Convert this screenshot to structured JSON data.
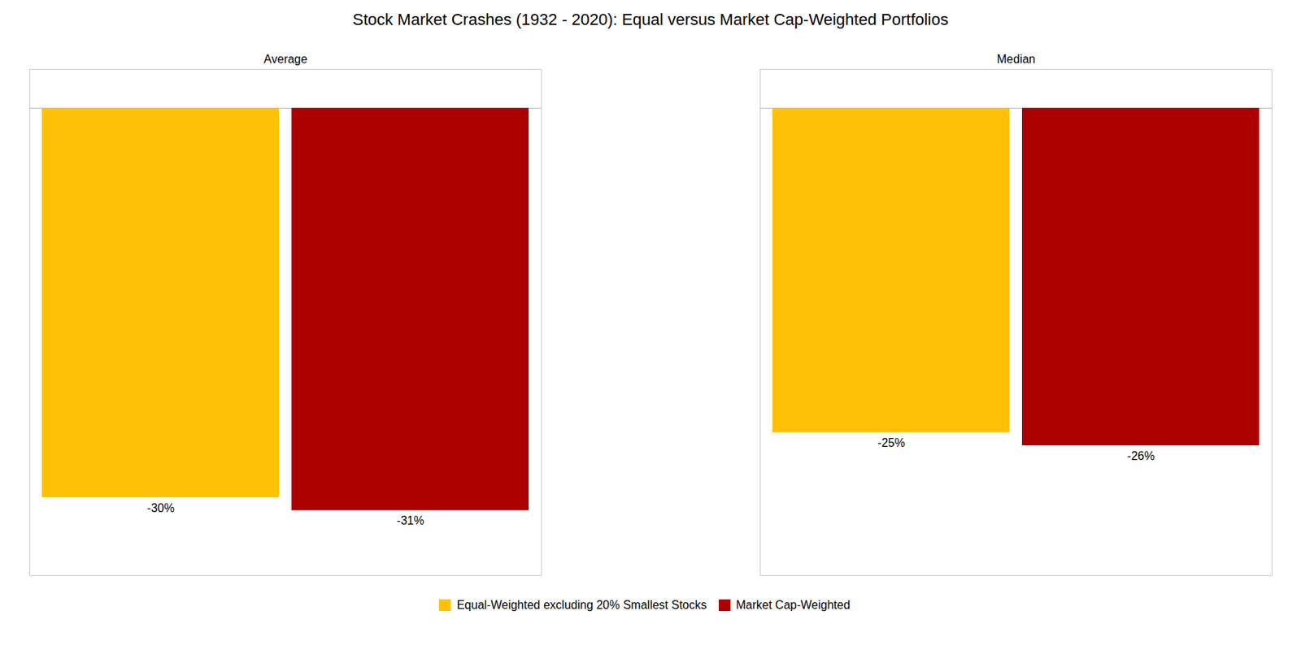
{
  "chart_data": {
    "type": "bar",
    "title": "Stock Market Crashes (1932 - 2020): Equal versus Market Cap-Weighted Portfolios",
    "categories": [
      "Average",
      "Median"
    ],
    "series": [
      {
        "name": "Equal-Weighted excluding 20% Smallest Stocks",
        "color": "#FFC107",
        "values": [
          -30,
          -25
        ],
        "value_labels": [
          "-30%",
          "-25%"
        ]
      },
      {
        "name": "Market Cap-Weighted",
        "color": "#AA0000",
        "values": [
          -31,
          -26
        ],
        "value_labels": [
          "-31%",
          "-26%"
        ]
      }
    ],
    "ylim": [
      -36,
      3
    ],
    "yticks": [],
    "tick_labels": "x",
    "grid": false,
    "legend": "bottom",
    "data_labels": true
  }
}
